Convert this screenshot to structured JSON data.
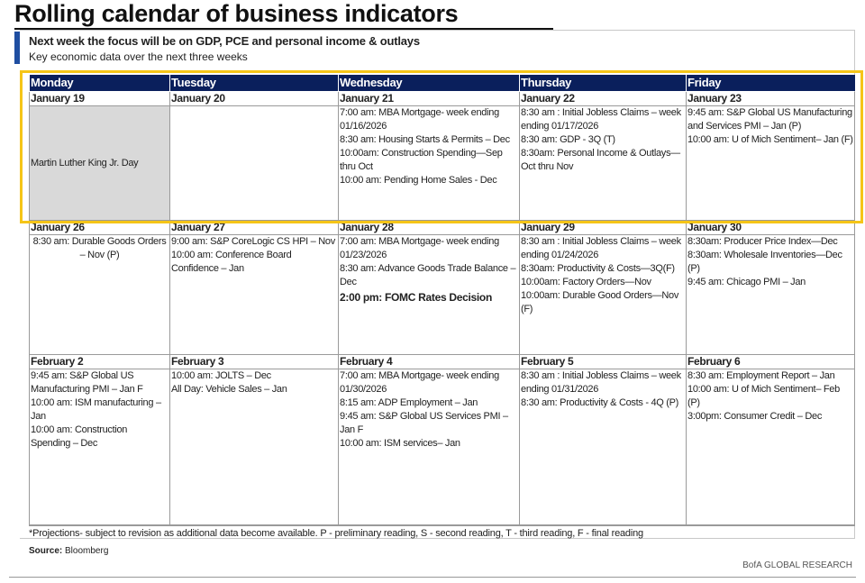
{
  "header": {
    "title": "Rolling calendar of business indicators",
    "subtitle": "Next week the focus will be on GDP, PCE and personal income & outlays",
    "description": "Key economic data over the next three weeks"
  },
  "table": {
    "days": [
      "Monday",
      "Tuesday",
      "Wednesday",
      "Thursday",
      "Friday"
    ],
    "weeks": [
      {
        "cells": [
          {
            "date": "January 19",
            "holiday": "Martin Luther King Jr. Day"
          },
          {
            "date": "January 20",
            "lines": []
          },
          {
            "date": "January 21",
            "lines": [
              "7:00 am: MBA Mortgage- week ending 01/16/2026",
              "8:30 am: Housing Starts & Permits – Dec",
              "10:00am: Construction Spending—Sep thru Oct",
              "10:00 am: Pending Home Sales - Dec"
            ]
          },
          {
            "date": "January 22",
            "lines": [
              "8:30 am : Initial Jobless Claims – week ending 01/17/2026",
              "8:30 am: GDP - 3Q (T)",
              "8:30am: Personal Income & Outlays—Oct thru Nov"
            ]
          },
          {
            "date": "January 23",
            "lines": [
              "9:45 am: S&P Global US Manufacturing and Services PMI – Jan (P)",
              "10:00 am: U of Mich Sentiment– Jan (F)"
            ]
          }
        ]
      },
      {
        "cells": [
          {
            "date": "January 26",
            "lines": [
              "8:30 am: Durable Goods Orders – Nov (P)"
            ],
            "align": "center"
          },
          {
            "date": "January 27",
            "lines": [
              "9:00 am: S&P CoreLogic CS HPI – Nov",
              "10:00 am: Conference Board Confidence – Jan"
            ]
          },
          {
            "date": "January 28",
            "lines": [
              "7:00 am: MBA Mortgage- week ending 01/23/2026",
              "8:30 am: Advance Goods Trade Balance – Dec"
            ],
            "key_event": "2:00 pm: FOMC Rates Decision"
          },
          {
            "date": "January 29",
            "lines": [
              "8:30 am : Initial Jobless Claims – week ending 01/24/2026",
              "8:30am: Productivity & Costs—3Q(F)",
              "10:00am: Factory Orders—Nov",
              "10:00am: Durable Good Orders—Nov (F)"
            ]
          },
          {
            "date": "January 30",
            "lines": [
              "8:30am: Producer Price Index—Dec",
              "8:30am: Wholesale Inventories—Dec (P)",
              "9:45 am: Chicago PMI – Jan"
            ]
          }
        ]
      },
      {
        "cells": [
          {
            "date": "February 2",
            "lines": [
              "9:45 am: S&P Global US Manufacturing PMI – Jan F",
              "10:00 am: ISM manufacturing – Jan",
              "10:00 am: Construction Spending – Dec"
            ]
          },
          {
            "date": "February 3",
            "lines": [
              "10:00 am: JOLTS – Dec",
              "All Day: Vehicle Sales – Jan"
            ]
          },
          {
            "date": "February 4",
            "lines": [
              "7:00 am: MBA Mortgage- week ending 01/30/2026",
              "8:15 am: ADP Employment – Jan",
              "9:45 am: S&P Global US Services PMI – Jan F",
              "10:00 am: ISM services– Jan"
            ]
          },
          {
            "date": "February 5",
            "lines": [
              "8:30 am : Initial Jobless Claims – week ending 01/31/2026",
              "8:30 am: Productivity & Costs - 4Q (P)"
            ]
          },
          {
            "date": "February 6",
            "lines": [
              "8:30 am: Employment Report – Jan",
              "10:00 am: U of Mich Sentiment– Feb (P)",
              "3:00pm: Consumer Credit – Dec"
            ]
          }
        ]
      }
    ]
  },
  "footnote": "*Projections- subject to revision as additional data become available. P - preliminary reading, S - second reading, T - third reading, F - final reading",
  "source": {
    "label": "Source:",
    "text": "Bloomberg"
  },
  "branding": "BofA GLOBAL RESEARCH"
}
